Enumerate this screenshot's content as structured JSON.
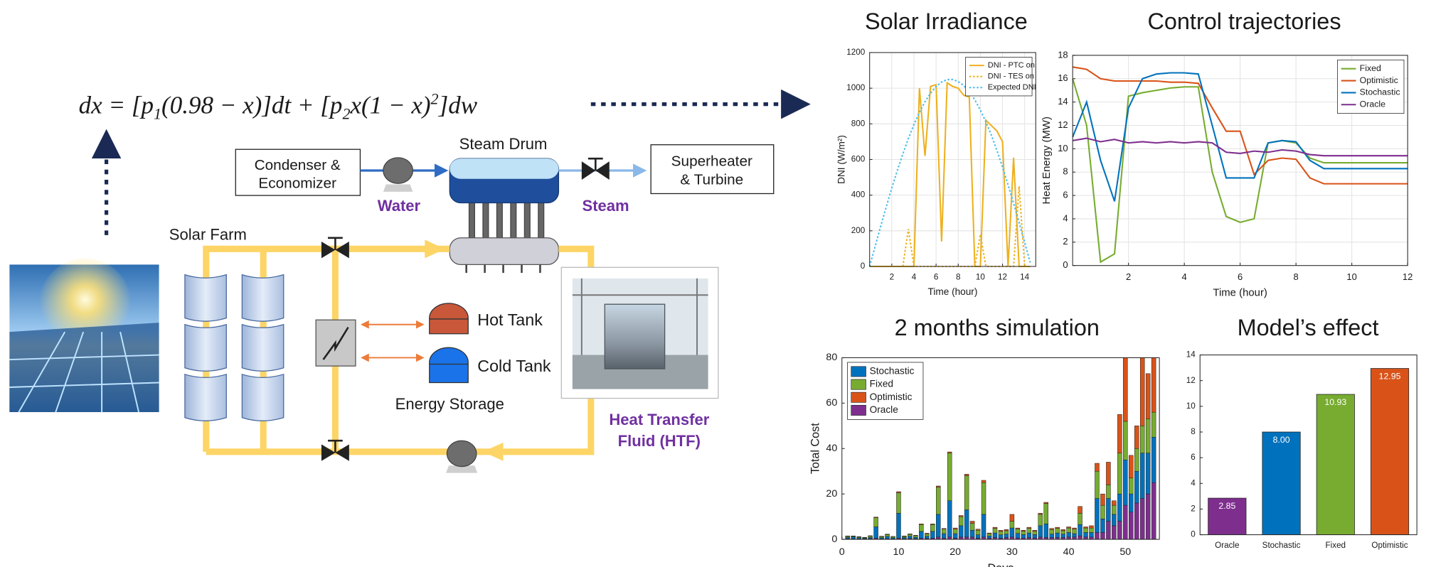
{
  "diagram": {
    "equation": [
      "dx = [p",
      "1",
      "(0.98 − x)]dt + [p",
      "2",
      "x(1 − x)",
      "2",
      "]dw"
    ],
    "condenser": [
      "Condenser &",
      "Economizer"
    ],
    "steam_drum": "Steam Drum",
    "superheater": [
      "Superheater",
      "& Turbine"
    ],
    "water": "Water",
    "steam": "Steam",
    "solar_farm": "Solar Farm",
    "hot_tank": "Hot Tank",
    "cold_tank": "Cold Tank",
    "energy_storage": "Energy Storage",
    "htf": [
      "Heat Transfer",
      "Fluid (HTF)"
    ]
  },
  "chart_data": [
    {
      "type": "line",
      "title": "Solar Irradiance",
      "xlabel": "Time (hour)",
      "ylabel": "DNI (W/m²)",
      "x": [
        0,
        0.5,
        1,
        1.5,
        2,
        2.5,
        3,
        3.5,
        4,
        4.5,
        5,
        5.5,
        6,
        6.5,
        7,
        7.5,
        8,
        8.5,
        9,
        9.5,
        10,
        10.5,
        11,
        11.5,
        12,
        12.5,
        13,
        13.5,
        14,
        14.5
      ],
      "series": [
        {
          "name": "DNI - PTC on",
          "color": "#edb120",
          "linestyle": "solid",
          "values": [
            0,
            0,
            0,
            0,
            0,
            0,
            0,
            0,
            0,
            1000,
            620,
            1010,
            1020,
            140,
            1030,
            1010,
            1000,
            960,
            950,
            0,
            0,
            820,
            790,
            760,
            700,
            0,
            610,
            0,
            0,
            0
          ]
        },
        {
          "name": "DNI - TES on",
          "color": "#edb120",
          "linestyle": "dotted",
          "values": [
            0,
            0,
            0,
            0,
            0,
            0,
            0,
            210,
            0,
            0,
            0,
            0,
            0,
            0,
            0,
            0,
            0,
            0,
            0,
            0,
            180,
            0,
            0,
            0,
            0,
            0,
            0,
            450,
            0,
            0
          ]
        },
        {
          "name": "Expected DNI",
          "color": "#4dbeee",
          "linestyle": "dotted",
          "values": [
            0,
            113,
            225,
            334,
            439,
            538,
            631,
            718,
            796,
            865,
            924,
            972,
            1009,
            1035,
            1048,
            1049,
            1037,
            1015,
            981,
            935,
            877,
            811,
            735,
            650,
            557,
            458,
            355,
            246,
            135,
            22
          ]
        }
      ],
      "xlim": [
        0,
        15
      ],
      "xticks": [
        2,
        4,
        6,
        8,
        10,
        12,
        14
      ],
      "ylim": [
        0,
        1200
      ],
      "yticks": [
        0,
        200,
        400,
        600,
        800,
        1000,
        1200
      ],
      "grid": true,
      "legend": "upper right"
    },
    {
      "type": "line",
      "title": "Control trajectories",
      "xlabel": "Time (hour)",
      "ylabel": "Heat Energy (MW)",
      "x": [
        0,
        0.5,
        1,
        1.5,
        2,
        2.5,
        3,
        3.5,
        4,
        4.5,
        5,
        5.5,
        6,
        6.5,
        7,
        7.5,
        8,
        8.5,
        9,
        9.5,
        10,
        10.5,
        11,
        11.5,
        12
      ],
      "series": [
        {
          "name": "Fixed",
          "color": "#77ac30",
          "linestyle": "solid",
          "values": [
            16,
            12,
            0.3,
            1,
            14.5,
            14.8,
            15,
            15.2,
            15.3,
            15.3,
            8,
            4.2,
            3.7,
            4,
            10.5,
            10.7,
            10.5,
            9.2,
            8.8,
            8.8,
            8.8,
            8.8,
            8.8,
            8.8,
            8.8
          ]
        },
        {
          "name": "Optimistic",
          "color": "#d95319",
          "linestyle": "solid",
          "values": [
            17,
            16.8,
            16,
            15.8,
            15.8,
            15.8,
            15.8,
            15.7,
            15.7,
            15.6,
            13.5,
            11.5,
            11.5,
            7.8,
            9,
            9.2,
            9.1,
            7.5,
            7,
            7,
            7,
            7,
            7,
            7,
            7
          ]
        },
        {
          "name": "Stochastic",
          "color": "#0072bd",
          "linestyle": "solid",
          "values": [
            11,
            14,
            9,
            5.5,
            13.5,
            16,
            16.4,
            16.5,
            16.5,
            16.4,
            12,
            7.5,
            7.5,
            7.5,
            10.5,
            10.7,
            10.6,
            9,
            8.3,
            8.3,
            8.3,
            8.3,
            8.3,
            8.3,
            8.3
          ]
        },
        {
          "name": "Oracle",
          "color": "#7e2f8e",
          "linestyle": "solid",
          "values": [
            10.7,
            10.9,
            10.6,
            10.8,
            10.5,
            10.6,
            10.5,
            10.6,
            10.5,
            10.6,
            10.5,
            9.7,
            9.6,
            9.8,
            9.7,
            9.9,
            9.8,
            9.5,
            9.4,
            9.4,
            9.4,
            9.4,
            9.4,
            9.4,
            9.4
          ]
        }
      ],
      "xlim": [
        0,
        12
      ],
      "xticks": [
        2,
        4,
        6,
        8,
        10,
        12
      ],
      "ylim": [
        0,
        18
      ],
      "yticks": [
        0,
        2,
        4,
        6,
        8,
        10,
        12,
        14,
        16,
        18
      ],
      "grid": true,
      "legend": "upper right"
    },
    {
      "type": "stacked_bar",
      "title": "2 months simulation",
      "xlabel": "Days",
      "ylabel": "Total Cost",
      "x": [
        1,
        2,
        3,
        4,
        5,
        6,
        7,
        8,
        9,
        10,
        11,
        12,
        13,
        14,
        15,
        16,
        17,
        18,
        19,
        20,
        21,
        22,
        23,
        24,
        25,
        26,
        27,
        28,
        29,
        30,
        31,
        32,
        33,
        34,
        35,
        36,
        37,
        38,
        39,
        40,
        41,
        42,
        43,
        44,
        45,
        46,
        47,
        48,
        49,
        50,
        51,
        52,
        53,
        54,
        55
      ],
      "series": [
        {
          "name": "Stochastic",
          "color": "#0072bd",
          "values": [
            0.5,
            0.8,
            0.5,
            0.3,
            0.5,
            5,
            0.5,
            1,
            0.5,
            11,
            0.5,
            1,
            0.6,
            3,
            1,
            3,
            10,
            2,
            16,
            2,
            5,
            12,
            3,
            1.5,
            10,
            1,
            2,
            1.5,
            1.5,
            4,
            2,
            1.5,
            2,
            1.5,
            5,
            6,
            1.5,
            2,
            1.5,
            2,
            1.5,
            5,
            2,
            2,
            15,
            6,
            10,
            5,
            12,
            20,
            8,
            14,
            20,
            18,
            20
          ]
        },
        {
          "name": "Fixed",
          "color": "#77ac30",
          "values": [
            0.5,
            0.3,
            0.4,
            0.3,
            0.6,
            4,
            0.5,
            0.8,
            0.5,
            9,
            0.5,
            0.8,
            0.7,
            3,
            1,
            3,
            12,
            2,
            21,
            2,
            4,
            15,
            3,
            2,
            14,
            1,
            2,
            1.5,
            1.5,
            3,
            2,
            1.5,
            2,
            1.5,
            5,
            9,
            2,
            2,
            1.5,
            2,
            2,
            5,
            2,
            2,
            12,
            6,
            6,
            4,
            18,
            17,
            7,
            10,
            12,
            15,
            11
          ]
        },
        {
          "name": "Optimistic",
          "color": "#d95319",
          "values": [
            0.2,
            0.1,
            0.1,
            0.1,
            0.2,
            0.3,
            0.2,
            0.2,
            0.1,
            0.5,
            0.2,
            0.2,
            0.2,
            0.3,
            0.3,
            0.3,
            0.5,
            0.3,
            0.5,
            0.5,
            0.5,
            0.7,
            1,
            0.5,
            1,
            0.3,
            0.5,
            0.5,
            0.5,
            3,
            0.4,
            0.4,
            0.5,
            0.4,
            0.5,
            0.5,
            0.5,
            0.5,
            0.5,
            0.5,
            0.5,
            3,
            0.5,
            1,
            3.5,
            5,
            10,
            2,
            17,
            30,
            10,
            10,
            40,
            20,
            30
          ]
        },
        {
          "name": "Oracle",
          "color": "#7e2f8e",
          "values": [
            0.3,
            0.3,
            0.2,
            0.2,
            0.3,
            0.5,
            0.2,
            0.3,
            0.2,
            0.5,
            0.3,
            0.4,
            0.3,
            0.5,
            0.4,
            0.5,
            1,
            0.5,
            1,
            0.5,
            1,
            1,
            1,
            0.5,
            1,
            0.5,
            0.8,
            0.5,
            0.8,
            1,
            0.6,
            0.6,
            0.8,
            0.6,
            1,
            0.8,
            0.8,
            0.8,
            0.8,
            1,
            1,
            1.5,
            1,
            1,
            3,
            3,
            8,
            6,
            8,
            15,
            12,
            16,
            18,
            20,
            25
          ]
        }
      ],
      "xlim": [
        0,
        56
      ],
      "xticks": [
        0,
        10,
        20,
        30,
        40,
        50
      ],
      "ylim": [
        0,
        80
      ],
      "yticks": [
        0,
        20,
        40,
        60,
        80
      ],
      "grid": false,
      "legend": "upper left"
    },
    {
      "type": "bar",
      "title": "Model’s effect",
      "categories": [
        "Oracle",
        "Stochastic",
        "Fixed",
        "Optimistic"
      ],
      "values": [
        2.85,
        8.0,
        10.93,
        12.95
      ],
      "value_labels": [
        "2.85",
        "8.00",
        "10.93",
        "12.95"
      ],
      "colors": [
        "#7e2f8e",
        "#0072bd",
        "#77ac30",
        "#d95319"
      ],
      "ylim": [
        0,
        14
      ],
      "yticks": [
        0,
        2,
        4,
        6,
        8,
        10,
        12,
        14
      ],
      "grid": false
    }
  ]
}
